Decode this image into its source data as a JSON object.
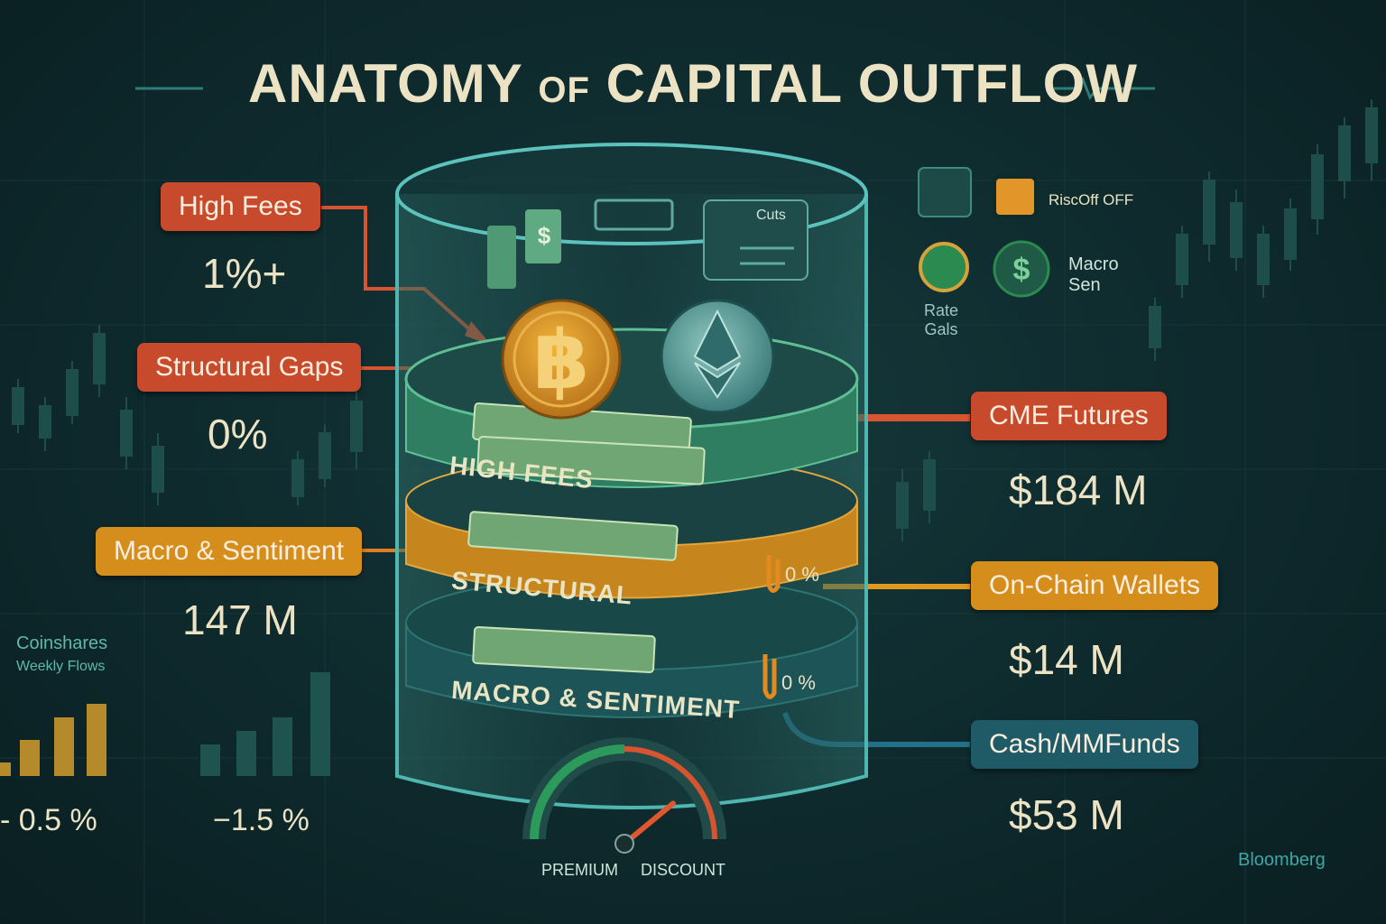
{
  "title": {
    "main": "ANATOMY",
    "of": "OF",
    "rest": "CAPITAL OUTFLOW"
  },
  "left_tags": [
    {
      "label": "High Fees",
      "value": "1%+",
      "color": "#c84a2c"
    },
    {
      "label": "Structural Gaps",
      "value": "0%",
      "color": "#c84a2c"
    },
    {
      "label": "Macro & Sentiment",
      "value": "147 M",
      "color": "#d58e1c"
    }
  ],
  "right_tags": [
    {
      "label": "CME Futures",
      "value": "$184 M",
      "color": "#c84a2c"
    },
    {
      "label": "On-Chain Wallets",
      "value": "$14 M",
      "color": "#d58e1c"
    },
    {
      "label": "Cash/MMFunds",
      "value": "$53 M",
      "color": "#1f5b66"
    }
  ],
  "cylinder_bands": [
    "HIGH FEES",
    "STRUCTURAL",
    "MACRO & SENTIMENT"
  ],
  "band_percents": [
    "0 %",
    "0 %"
  ],
  "screen_card": {
    "text": "Cuts"
  },
  "indicators": {
    "riskoff": "RiscOff OFF",
    "rate": "Rate\nGals",
    "macro": "Macro\nSen"
  },
  "coinshares": {
    "title": "Coinshares",
    "subtitle": "Weekly Flows"
  },
  "bottom_values": [
    "- 0.5 %",
    "−1.5 %"
  ],
  "gauge": {
    "left": "PREMIUM",
    "right": "DISCOUNT",
    "level": 0.78
  },
  "source": "Bloomberg",
  "icons": [
    "bitcoin-icon",
    "ethereum-icon",
    "dollar-icon",
    "gauge-icon"
  ],
  "colors": {
    "red": "#c84a2c",
    "orange": "#d58e1c",
    "teal": "#1f5b66",
    "cream": "#ece3c4"
  }
}
